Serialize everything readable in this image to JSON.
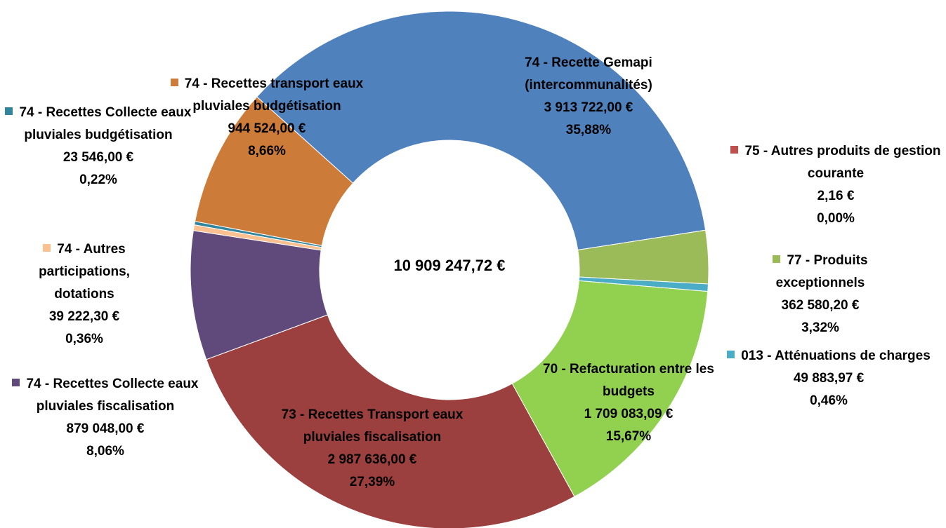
{
  "chart_data": {
    "type": "donut",
    "total": 10909247.72,
    "total_label": "10 909 247,72 €",
    "categories": [
      "74 - Recette Gemapi (intercommunalités)",
      "75 - Autres produits de gestion courante",
      "77 - Produits exceptionnels",
      "013 - Atténuations de charges",
      "70 - Refacturation entre les budgets",
      "73 - Recettes Transport eaux pluviales fiscalisation",
      "74 - Recettes Collecte eaux pluviales fiscalisation",
      "74 - Autres participations, dotations",
      "74 - Recettes Collecte eaux pluviales budgétisation",
      "74 - Recettes transport eaux pluviales budgétisation"
    ],
    "values": [
      3913722.0,
      2.16,
      362580.2,
      49883.97,
      1709083.09,
      2987636.0,
      879048.0,
      39222.3,
      23546.0,
      944524.0
    ],
    "value_labels": [
      "3 913 722,00 €",
      "2,16 €",
      "362 580,20 €",
      "49 883,97 €",
      "1 709 083,09 €",
      "2 987 636,00 €",
      "879 048,00 €",
      "39 222,30 €",
      "23 546,00 €",
      "944 524,00 €"
    ],
    "percents": [
      35.88,
      0.0,
      3.32,
      0.46,
      15.67,
      27.39,
      8.06,
      0.36,
      0.22,
      8.66
    ],
    "percent_labels": [
      "35,88%",
      "0,00%",
      "3,32%",
      "0,46%",
      "15,67%",
      "27,39%",
      "8,06%",
      "0,36%",
      "0,22%",
      "8,66%"
    ],
    "colors": [
      "#4f81bd",
      "#c0504d",
      "#9bbb59",
      "#4bacc6",
      "#92d050",
      "#9b3f3f",
      "#604a7b",
      "#fac090",
      "#31859c",
      "#cd7b38"
    ]
  }
}
